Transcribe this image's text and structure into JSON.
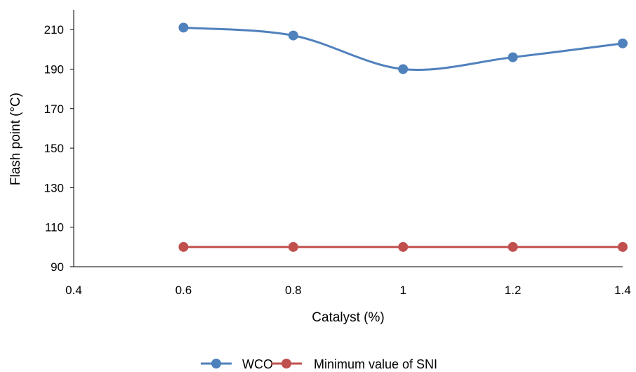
{
  "chart_data": {
    "type": "line",
    "smooth": true,
    "xlabel": "Catalyst (%)",
    "ylabel": "Flash point (°C)",
    "xlim": [
      0.4,
      1.4
    ],
    "ylim": [
      90,
      220
    ],
    "x_ticks": [
      0.4,
      0.6,
      0.8,
      1.0,
      1.2,
      1.4
    ],
    "x_tick_labels": [
      "0.4",
      "0.6",
      "0.8",
      "1",
      "1.2",
      "1.4"
    ],
    "y_ticks": [
      90,
      110,
      130,
      150,
      170,
      190,
      210
    ],
    "y_tick_labels": [
      "90",
      "110",
      "130",
      "150",
      "170",
      "190",
      "210"
    ],
    "grid": false,
    "legend_position": "bottom",
    "series": [
      {
        "name": "WCO",
        "color": "#4F81BD",
        "x": [
          0.6,
          0.8,
          1.0,
          1.2,
          1.4
        ],
        "y": [
          211,
          207,
          190,
          196,
          203
        ]
      },
      {
        "name": "Minimum value of SNI",
        "color": "#C0504D",
        "x": [
          0.6,
          0.8,
          1.0,
          1.2,
          1.4
        ],
        "y": [
          100,
          100,
          100,
          100,
          100
        ]
      }
    ]
  }
}
